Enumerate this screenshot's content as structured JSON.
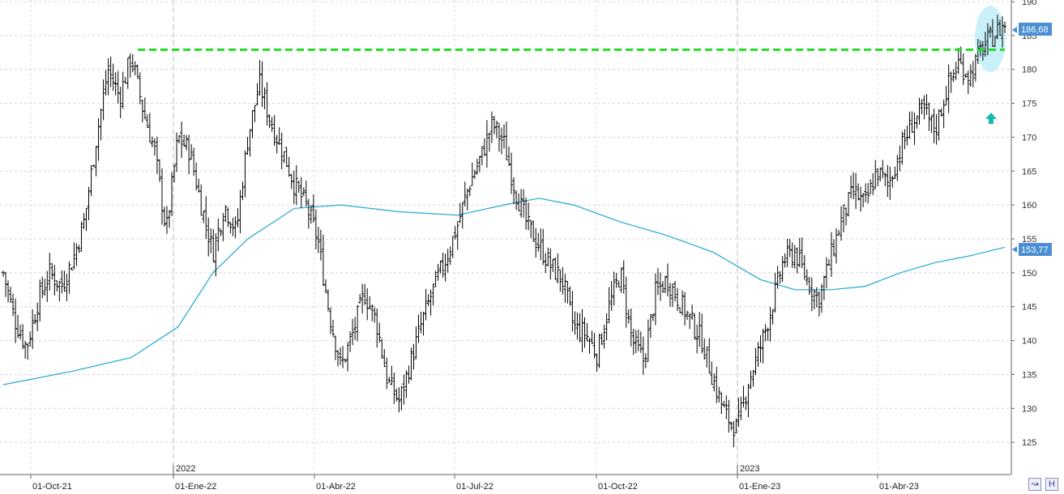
{
  "chart_data": {
    "type": "ohlc-bar",
    "title": "",
    "ylim": [
      120,
      190
    ],
    "y_ticks": [
      125,
      130,
      135,
      140,
      145,
      150,
      155,
      160,
      165,
      170,
      175,
      180,
      185,
      190
    ],
    "x_tick_labels": [
      "01-Oct-21",
      "01-Ene-22",
      "01-Abr-22",
      "01-Jul-22",
      "01-Oct-22",
      "01-Ene-23",
      "01-Abr-23"
    ],
    "year_labels": [
      "2022",
      "2023"
    ],
    "grid": true,
    "price_series": {
      "name": "",
      "color": "#000000",
      "approx_closes": [
        [
          0,
          150
        ],
        [
          1,
          143
        ],
        [
          2,
          139
        ],
        [
          3,
          146
        ],
        [
          4,
          150
        ],
        [
          5,
          148
        ],
        [
          6,
          152
        ],
        [
          7,
          158
        ],
        [
          8,
          170
        ],
        [
          9,
          180
        ],
        [
          10,
          176
        ],
        [
          11,
          182
        ],
        [
          12,
          174
        ],
        [
          13,
          168
        ],
        [
          14,
          156
        ],
        [
          15,
          170
        ],
        [
          16,
          168
        ],
        [
          17,
          160
        ],
        [
          18,
          153
        ],
        [
          19,
          160
        ],
        [
          20,
          156
        ],
        [
          21,
          170
        ],
        [
          22,
          178
        ],
        [
          23,
          172
        ],
        [
          24,
          168
        ],
        [
          25,
          163
        ],
        [
          26,
          160
        ],
        [
          27,
          155
        ],
        [
          28,
          144
        ],
        [
          29,
          136
        ],
        [
          30,
          141
        ],
        [
          31,
          147
        ],
        [
          32,
          143
        ],
        [
          33,
          134
        ],
        [
          34,
          131
        ],
        [
          35,
          137
        ],
        [
          36,
          143
        ],
        [
          37,
          148
        ],
        [
          38,
          152
        ],
        [
          39,
          157
        ],
        [
          40,
          163
        ],
        [
          41,
          167
        ],
        [
          42,
          172
        ],
        [
          43,
          169
        ],
        [
          44,
          162
        ],
        [
          45,
          157
        ],
        [
          46,
          154
        ],
        [
          47,
          151
        ],
        [
          48,
          149
        ],
        [
          49,
          142
        ],
        [
          50,
          141
        ],
        [
          51,
          138
        ],
        [
          52,
          145
        ],
        [
          53,
          150
        ],
        [
          54,
          140
        ],
        [
          55,
          137
        ],
        [
          56,
          147
        ],
        [
          57,
          149
        ],
        [
          58,
          146
        ],
        [
          59,
          143
        ],
        [
          60,
          140
        ],
        [
          61,
          134
        ],
        [
          62,
          129
        ],
        [
          63,
          127
        ],
        [
          64,
          134
        ],
        [
          65,
          139
        ],
        [
          66,
          145
        ],
        [
          67,
          152
        ],
        [
          68,
          153
        ],
        [
          69,
          149
        ],
        [
          70,
          146
        ],
        [
          71,
          152
        ],
        [
          72,
          158
        ],
        [
          73,
          162
        ],
        [
          74,
          160
        ],
        [
          75,
          165
        ],
        [
          76,
          163
        ],
        [
          77,
          168
        ],
        [
          78,
          172
        ],
        [
          79,
          174
        ],
        [
          80,
          171
        ],
        [
          81,
          177
        ],
        [
          82,
          181
        ],
        [
          83,
          179
        ],
        [
          84,
          183
        ],
        [
          85,
          185
        ],
        [
          86,
          186.68
        ]
      ]
    },
    "moving_average": {
      "name": "",
      "color": "#1ea7d4",
      "last_value": 153.77,
      "points": [
        [
          0,
          133.5
        ],
        [
          6,
          135.5
        ],
        [
          11,
          137.5
        ],
        [
          15,
          142
        ],
        [
          18,
          150
        ],
        [
          21,
          155
        ],
        [
          25,
          159.5
        ],
        [
          29,
          160
        ],
        [
          34,
          159
        ],
        [
          39,
          158.5
        ],
        [
          43,
          160
        ],
        [
          46,
          161
        ],
        [
          49,
          160
        ],
        [
          53,
          157.5
        ],
        [
          57,
          155.5
        ],
        [
          61,
          153
        ],
        [
          65,
          149
        ],
        [
          68,
          147.5
        ],
        [
          71,
          147.5
        ],
        [
          74,
          148
        ],
        [
          77,
          150
        ],
        [
          80,
          151.5
        ],
        [
          83,
          152.5
        ],
        [
          86,
          153.77
        ]
      ]
    },
    "resistance_line": {
      "value": 182.9,
      "color": "#22dd22",
      "style": "dashed"
    },
    "last_price_tag": {
      "value": "186,68",
      "color": "#4a8fd4"
    },
    "ma_tag": {
      "value": "153,77",
      "color": "#4a8fd4"
    },
    "annotations": [
      {
        "type": "ellipse",
        "color": "#aeeaf7"
      },
      {
        "type": "up-arrow",
        "color": "#1ab8b0"
      }
    ]
  },
  "toolbar": {
    "btn1_icon": "chart-scale-icon",
    "btn2_label": "H"
  }
}
